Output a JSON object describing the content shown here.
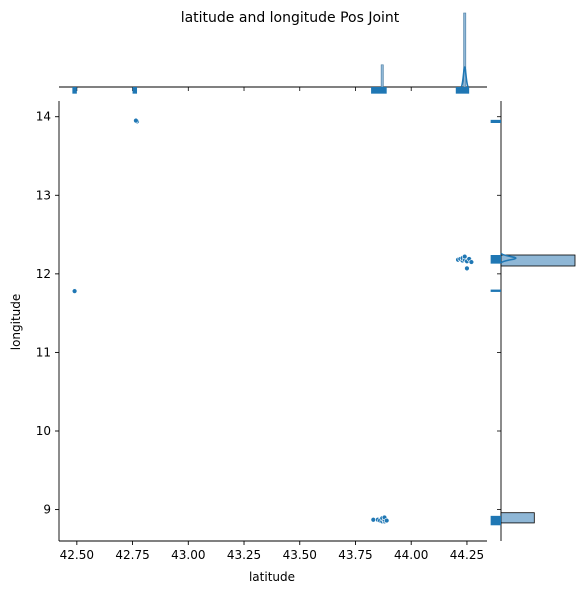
{
  "chart_data": {
    "type": "scatter",
    "title": "latitude and longitude Pos Joint",
    "xlabel": "latitude",
    "ylabel": "longitude",
    "xlim": [
      42.42,
      44.34
    ],
    "ylim": [
      8.6,
      14.2
    ],
    "x_ticks": [
      "42.50",
      "42.75",
      "43.00",
      "43.25",
      "43.50",
      "43.75",
      "44.00",
      "44.25"
    ],
    "y_ticks": [
      "9",
      "10",
      "11",
      "12",
      "13",
      "14"
    ],
    "grid": false,
    "legend": "none",
    "colors": {
      "points": "#1f77b4",
      "point_edge": "#ffffff",
      "hist_fill": "#1f77b4",
      "hist_light": "#8fb7d6",
      "kde": "#1f77b4"
    },
    "points": [
      {
        "x": 42.49,
        "y": 11.78
      },
      {
        "x": 42.77,
        "y": 13.94
      },
      {
        "x": 42.765,
        "y": 13.95
      },
      {
        "x": 43.83,
        "y": 8.87
      },
      {
        "x": 43.85,
        "y": 8.87
      },
      {
        "x": 43.86,
        "y": 8.86
      },
      {
        "x": 43.87,
        "y": 8.85
      },
      {
        "x": 43.87,
        "y": 8.89
      },
      {
        "x": 43.88,
        "y": 8.85
      },
      {
        "x": 43.88,
        "y": 8.87
      },
      {
        "x": 43.88,
        "y": 8.9
      },
      {
        "x": 43.89,
        "y": 8.86
      },
      {
        "x": 44.21,
        "y": 12.18
      },
      {
        "x": 44.22,
        "y": 12.19
      },
      {
        "x": 44.23,
        "y": 12.17
      },
      {
        "x": 44.23,
        "y": 12.2
      },
      {
        "x": 44.24,
        "y": 12.18
      },
      {
        "x": 44.24,
        "y": 12.22
      },
      {
        "x": 44.25,
        "y": 12.16
      },
      {
        "x": 44.25,
        "y": 12.07
      },
      {
        "x": 44.26,
        "y": 12.19
      },
      {
        "x": 44.27,
        "y": 12.15
      }
    ],
    "x_marginal": {
      "dark_bars": [
        {
          "from": 42.48,
          "to": 42.5,
          "height": 0.09
        },
        {
          "from": 42.75,
          "to": 42.77,
          "height": 0.09
        },
        {
          "from": 43.82,
          "to": 43.89,
          "height": 0.09
        },
        {
          "from": 44.2,
          "to": 44.26,
          "height": 0.09
        }
      ],
      "light_bars": [
        {
          "from": 43.865,
          "to": 43.875,
          "height": 0.3
        },
        {
          "from": 44.235,
          "to": 44.245,
          "height": 1.0
        }
      ],
      "kde_peak": {
        "x": 44.24,
        "height": 0.27,
        "width": 0.03
      }
    },
    "y_marginal": {
      "dark_bars": [
        {
          "from": 13.92,
          "to": 13.96,
          "length": 0.14
        },
        {
          "from": 12.13,
          "to": 12.24,
          "length": 0.14
        },
        {
          "from": 11.77,
          "to": 11.8,
          "length": 0.14
        },
        {
          "from": 8.8,
          "to": 8.92,
          "length": 0.14
        }
      ],
      "light_bars": [
        {
          "from": 12.1,
          "to": 12.24,
          "length": 1.0
        },
        {
          "from": 8.83,
          "to": 8.96,
          "length": 0.45
        }
      ],
      "kde_peak": {
        "y": 12.2,
        "length": 0.2,
        "width": 0.12
      }
    }
  }
}
